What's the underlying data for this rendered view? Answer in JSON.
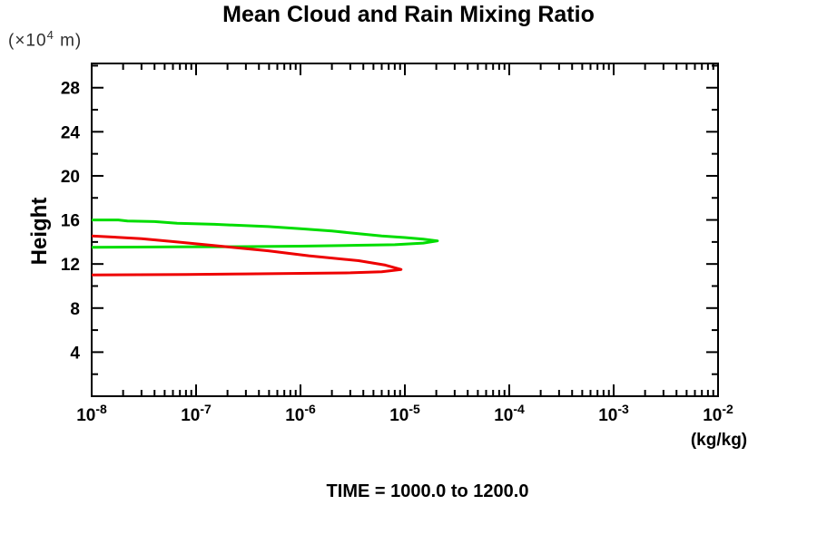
{
  "title": "Mean Cloud and Rain Mixing Ratio",
  "y_axis": {
    "units_prefix": "(×10",
    "units_exponent": "4",
    "units_suffix": " m)",
    "label": "Height"
  },
  "x_axis": {
    "units_label": "(kg/kg)"
  },
  "footer": {
    "time_label": "TIME = 1000.0 to 1200.0"
  },
  "colors": {
    "cloud_line": "#00dd00",
    "rain_line": "#ee0000",
    "axis": "#000000",
    "background": "#ffffff"
  },
  "chart_data": {
    "type": "line",
    "title": "Mean Cloud and Rain Mixing Ratio",
    "xlabel": "(kg/kg)",
    "ylabel": "Height (×10^4 m)",
    "x_scale": "log",
    "xlim": [
      1e-08,
      0.01
    ],
    "ylim": [
      0,
      30.2
    ],
    "x_tick_exponents": [
      -8,
      -7,
      -6,
      -5,
      -4,
      -3,
      -2
    ],
    "y_major_ticks": [
      4,
      8,
      12,
      16,
      20,
      24,
      28
    ],
    "y_minor_ticks": [
      2,
      6,
      10,
      14,
      18,
      22,
      26,
      30
    ],
    "grid": false,
    "legend": "none",
    "annotation": "TIME = 1000.0 to 1200.0",
    "series": [
      {
        "name": "cloud",
        "color": "#00dd00",
        "points": [
          [
            1e-08,
            16.0
          ],
          [
            1.8e-08,
            16.0
          ],
          [
            2.2e-08,
            15.9
          ],
          [
            4e-08,
            15.85
          ],
          [
            6.6e-08,
            15.7
          ],
          [
            1.5e-07,
            15.6
          ],
          [
            4.9e-07,
            15.4
          ],
          [
            1e-06,
            15.2
          ],
          [
            2e-06,
            15.0
          ],
          [
            3.6e-06,
            14.75
          ],
          [
            6e-06,
            14.55
          ],
          [
            1e-05,
            14.4
          ],
          [
            1.5e-05,
            14.25
          ],
          [
            2.05e-05,
            14.1
          ],
          [
            1.5e-05,
            13.9
          ],
          [
            8e-06,
            13.75
          ],
          [
            3.6e-06,
            13.7
          ],
          [
            1e-06,
            13.62
          ],
          [
            3e-07,
            13.58
          ],
          [
            6.6e-08,
            13.55
          ],
          [
            1e-08,
            13.52
          ]
        ]
      },
      {
        "name": "rain",
        "color": "#ee0000",
        "points": [
          [
            1e-08,
            14.55
          ],
          [
            3e-08,
            14.3
          ],
          [
            6.6e-08,
            14.0
          ],
          [
            2e-07,
            13.55
          ],
          [
            4.9e-07,
            13.2
          ],
          [
            1.2e-06,
            12.75
          ],
          [
            3.6e-06,
            12.3
          ],
          [
            6.5e-06,
            11.9
          ],
          [
            9.2e-06,
            11.5
          ],
          [
            6e-06,
            11.3
          ],
          [
            3e-06,
            11.2
          ],
          [
            1e-06,
            11.15
          ],
          [
            3e-07,
            11.1
          ],
          [
            8e-08,
            11.05
          ],
          [
            1e-08,
            11.0
          ]
        ]
      }
    ]
  }
}
